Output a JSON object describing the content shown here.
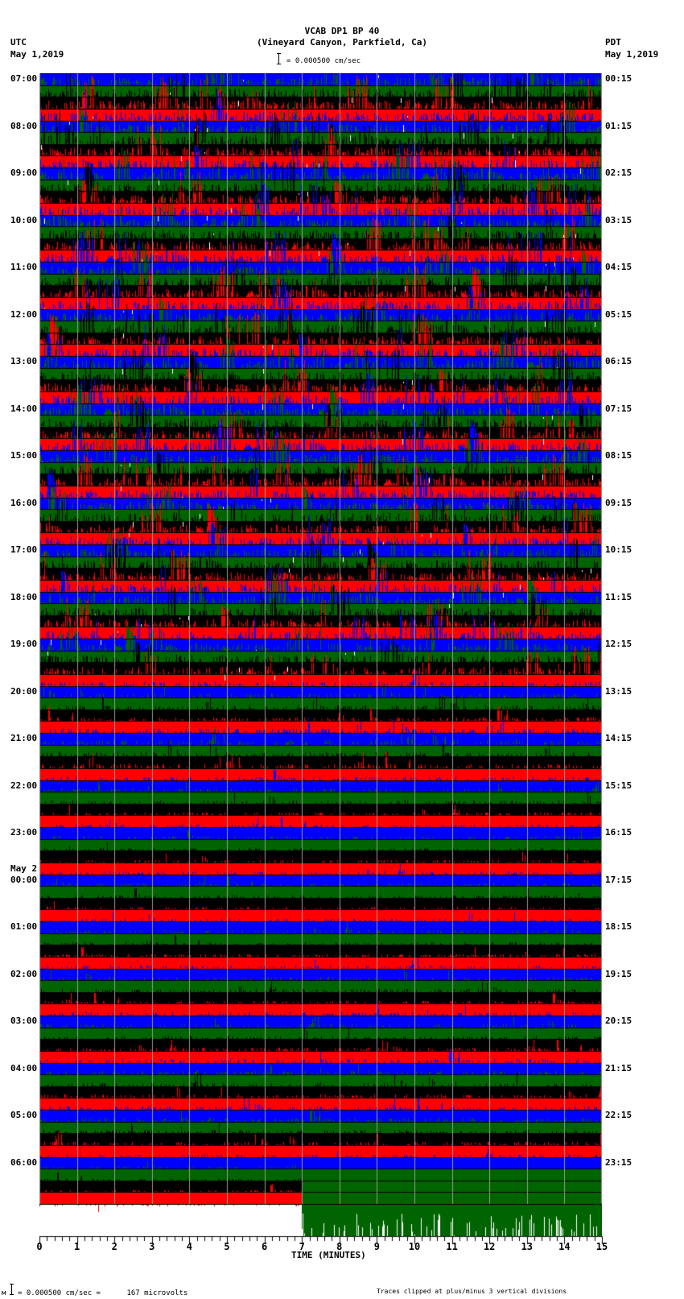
{
  "header": {
    "station": "VCAB DP1 BP 40",
    "location": "(Vineyard Canyon, Parkfield, Ca)",
    "left_tz": "UTC",
    "left_date": "May 1,2019",
    "right_tz": "PDT",
    "right_date": "May 1,2019",
    "scale_label": "= 0.000500 cm/sec"
  },
  "footer": {
    "scale_prefix": "м",
    "scale_text": "= 0.000500 cm/sec =      167 microvolts",
    "clip_note": "Traces clipped at plus/minus 3 vertical divisions"
  },
  "chart_data": {
    "type": "heatmap",
    "title": "VCAB DP1 BP 40 (Vineyard Canyon, Parkfield, Ca)",
    "xlabel": "TIME (MINUTES)",
    "ylabel_left": "UTC",
    "ylabel_right": "PDT",
    "xlim": [
      0,
      15
    ],
    "x_ticks": [
      0,
      1,
      2,
      3,
      4,
      5,
      6,
      7,
      8,
      9,
      10,
      11,
      12,
      13,
      14,
      15
    ],
    "minor_tick_step": 0.2,
    "rows_per_hour": 4,
    "row_minutes": 15,
    "trace_colors": [
      "#0000ff",
      "#006400",
      "#000000",
      "#ff0000"
    ],
    "grid_color": "#9a9a9a",
    "clip_divisions": 3,
    "scale_cm_per_sec": 0.0005,
    "scale_microvolts": 167,
    "left_labels": [
      {
        "row": 0,
        "text": "07:00"
      },
      {
        "row": 4,
        "text": "08:00"
      },
      {
        "row": 8,
        "text": "09:00"
      },
      {
        "row": 12,
        "text": "10:00"
      },
      {
        "row": 16,
        "text": "11:00"
      },
      {
        "row": 20,
        "text": "12:00"
      },
      {
        "row": 24,
        "text": "13:00"
      },
      {
        "row": 28,
        "text": "14:00"
      },
      {
        "row": 32,
        "text": "15:00"
      },
      {
        "row": 36,
        "text": "16:00"
      },
      {
        "row": 40,
        "text": "17:00"
      },
      {
        "row": 44,
        "text": "18:00"
      },
      {
        "row": 48,
        "text": "19:00"
      },
      {
        "row": 52,
        "text": "20:00"
      },
      {
        "row": 56,
        "text": "21:00"
      },
      {
        "row": 60,
        "text": "22:00"
      },
      {
        "row": 64,
        "text": "23:00"
      },
      {
        "row": 68,
        "text": "00:00",
        "date": "May 2"
      },
      {
        "row": 72,
        "text": "01:00"
      },
      {
        "row": 76,
        "text": "02:00"
      },
      {
        "row": 80,
        "text": "03:00"
      },
      {
        "row": 84,
        "text": "04:00"
      },
      {
        "row": 88,
        "text": "05:00"
      },
      {
        "row": 92,
        "text": "06:00"
      }
    ],
    "right_labels": [
      {
        "row": 0,
        "text": "00:15"
      },
      {
        "row": 4,
        "text": "01:15"
      },
      {
        "row": 8,
        "text": "02:15"
      },
      {
        "row": 12,
        "text": "03:15"
      },
      {
        "row": 16,
        "text": "04:15"
      },
      {
        "row": 20,
        "text": "05:15"
      },
      {
        "row": 24,
        "text": "06:15"
      },
      {
        "row": 28,
        "text": "07:15"
      },
      {
        "row": 32,
        "text": "08:15"
      },
      {
        "row": 36,
        "text": "09:15"
      },
      {
        "row": 40,
        "text": "10:15"
      },
      {
        "row": 44,
        "text": "11:15"
      },
      {
        "row": 48,
        "text": "12:15"
      },
      {
        "row": 52,
        "text": "13:15"
      },
      {
        "row": 56,
        "text": "14:15"
      },
      {
        "row": 60,
        "text": "15:15"
      },
      {
        "row": 64,
        "text": "16:15"
      },
      {
        "row": 68,
        "text": "17:15"
      },
      {
        "row": 72,
        "text": "18:15"
      },
      {
        "row": 76,
        "text": "19:15"
      },
      {
        "row": 80,
        "text": "20:15"
      },
      {
        "row": 84,
        "text": "21:15"
      },
      {
        "row": 88,
        "text": "22:15"
      },
      {
        "row": 92,
        "text": "23:15"
      }
    ],
    "hourly_activity": [
      0.95,
      0.95,
      0.9,
      0.95,
      0.9,
      0.9,
      0.9,
      0.9,
      0.9,
      0.85,
      0.85,
      0.85,
      0.8,
      0.45,
      0.5,
      0.35,
      0.3,
      0.3,
      0.3,
      0.35,
      0.35,
      0.4,
      0.4,
      0.25
    ],
    "last_row_minute": 7
  }
}
